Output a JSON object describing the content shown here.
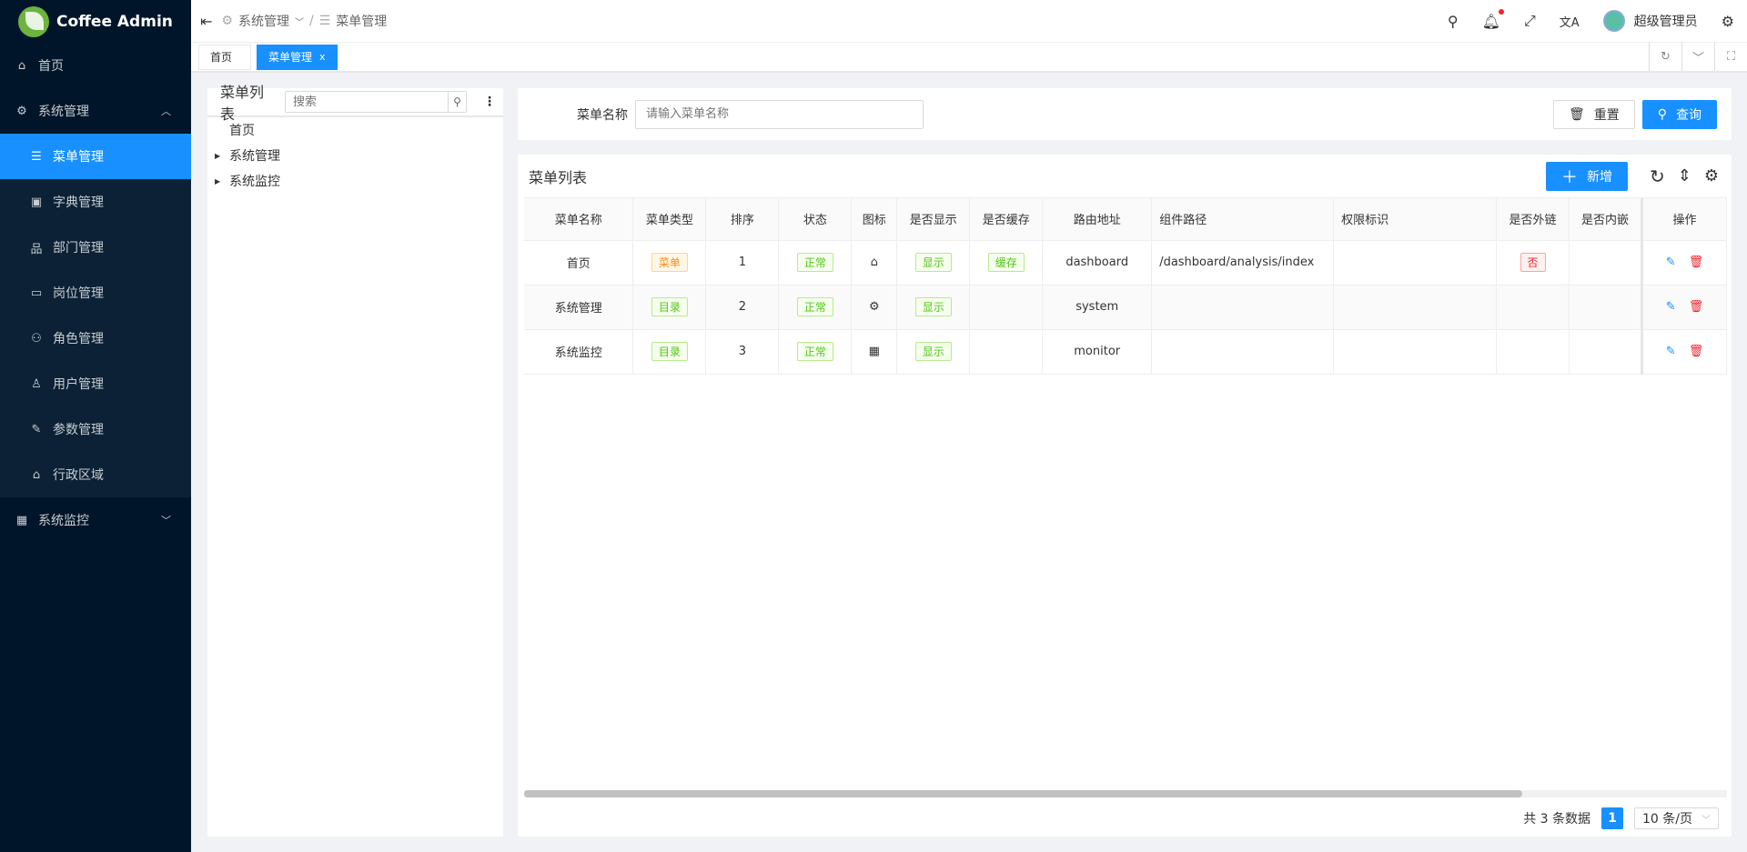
{
  "app": {
    "title": "Coffee Admin"
  },
  "sidebar": {
    "items": [
      {
        "label": "首页",
        "icon": "home-icon"
      },
      {
        "label": "系统管理",
        "icon": "gear-icon",
        "expanded": true,
        "children": [
          {
            "label": "菜单管理",
            "icon": "list-icon",
            "active": true
          },
          {
            "label": "字典管理",
            "icon": "dictionary-icon"
          },
          {
            "label": "部门管理",
            "icon": "org-tree-icon"
          },
          {
            "label": "岗位管理",
            "icon": "id-card-icon"
          },
          {
            "label": "角色管理",
            "icon": "users-icon"
          },
          {
            "label": "用户管理",
            "icon": "user-icon"
          },
          {
            "label": "参数管理",
            "icon": "wrench-icon"
          },
          {
            "label": "行政区域",
            "icon": "bank-icon"
          }
        ]
      },
      {
        "label": "系统监控",
        "icon": "monitor-icon"
      }
    ]
  },
  "header": {
    "breadcrumb": [
      "系统管理",
      "菜单管理"
    ],
    "user": "超级管理员"
  },
  "tabs": [
    {
      "label": "首页"
    },
    {
      "label": "菜单管理",
      "active": true,
      "close": "x"
    }
  ],
  "tree": {
    "title": "菜单列表",
    "search_placeholder": "搜索",
    "nodes": [
      "首页",
      "系统管理",
      "系统监控"
    ]
  },
  "search": {
    "label": "菜单名称",
    "placeholder": "请输入菜单名称",
    "reset": "重置",
    "query": "查询"
  },
  "table": {
    "title": "菜单列表",
    "add": "新增",
    "columns": [
      "菜单名称",
      "菜单类型",
      "排序",
      "状态",
      "图标",
      "是否显示",
      "是否缓存",
      "路由地址",
      "组件路径",
      "权限标识",
      "是否外链",
      "是否内嵌",
      "操作"
    ],
    "rows": [
      {
        "name": "首页",
        "type": "菜单",
        "type_color": "orange",
        "sort": "1",
        "status": "正常",
        "icon": "home-icon",
        "show": "显示",
        "cache": "缓存",
        "route": "dashboard",
        "component": "/dashboard/analysis/index",
        "perm": "",
        "external": "否",
        "embed": ""
      },
      {
        "name": "系统管理",
        "type": "目录",
        "type_color": "green",
        "sort": "2",
        "status": "正常",
        "icon": "gear-icon",
        "show": "显示",
        "cache": "",
        "route": "system",
        "component": "",
        "perm": "",
        "external": "",
        "embed": ""
      },
      {
        "name": "系统监控",
        "type": "目录",
        "type_color": "green",
        "sort": "3",
        "status": "正常",
        "icon": "monitor-icon",
        "show": "显示",
        "cache": "",
        "route": "monitor",
        "component": "",
        "perm": "",
        "external": "",
        "embed": ""
      }
    ]
  },
  "pagination": {
    "total": "共 3 条数据",
    "page": "1",
    "page_size": "10 条/页"
  },
  "colors": {
    "accent": "#1890ff",
    "sidebar": "#001529"
  }
}
